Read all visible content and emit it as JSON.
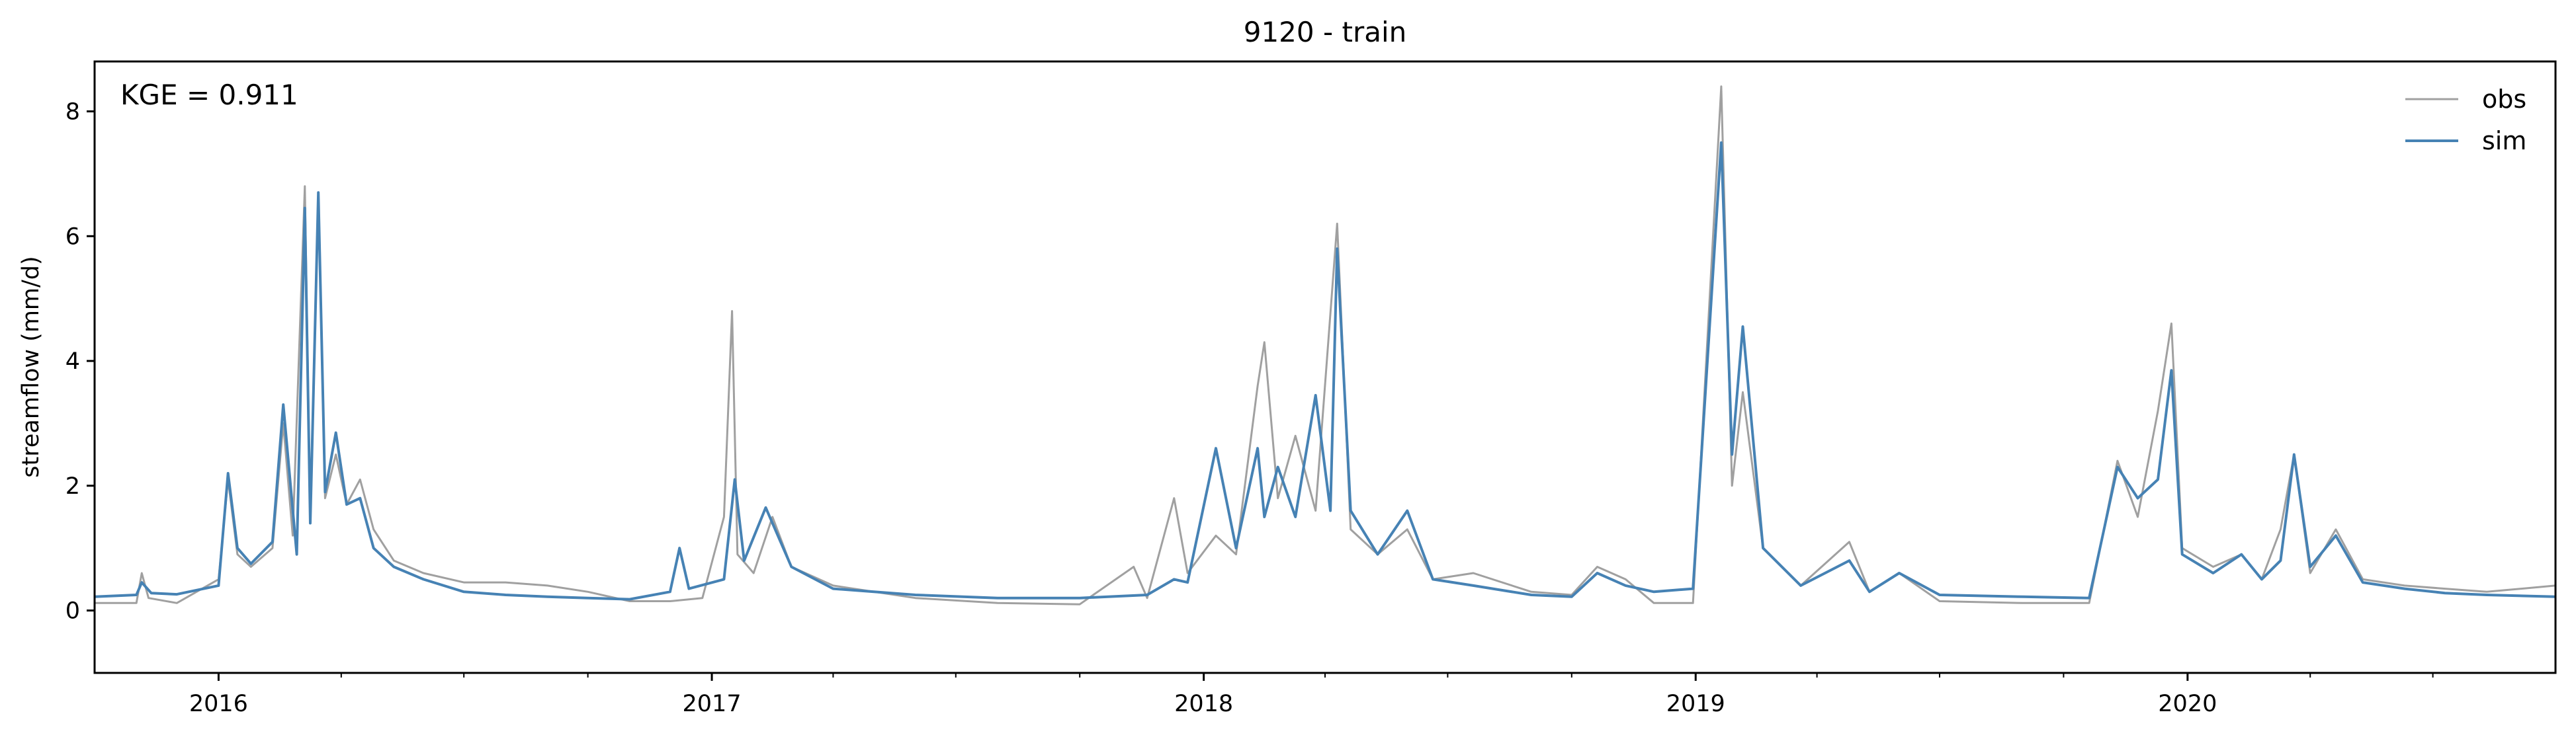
{
  "chart_data": {
    "type": "line",
    "title": "9120 - train",
    "xlabel": "",
    "ylabel": "streamflow (mm/d)",
    "annotation": "KGE = 0.911",
    "x_range": [
      "2015-10-01",
      "2020-09-30"
    ],
    "ylim": [
      -1.0,
      8.8
    ],
    "yticks": [
      0,
      2,
      4,
      6,
      8
    ],
    "xticks": [
      {
        "date": "2016-01-01",
        "label": "2016"
      },
      {
        "date": "2017-01-01",
        "label": "2017"
      },
      {
        "date": "2018-01-01",
        "label": "2018"
      },
      {
        "date": "2019-01-01",
        "label": "2019"
      },
      {
        "date": "2020-01-01",
        "label": "2020"
      }
    ],
    "minor_xticks": [
      "2016-04-01",
      "2016-07-01",
      "2016-10-01",
      "2017-04-01",
      "2017-07-01",
      "2017-10-01",
      "2018-04-01",
      "2018-07-01",
      "2018-10-01",
      "2019-04-01",
      "2019-07-01",
      "2019-10-01",
      "2020-04-01",
      "2020-07-01"
    ],
    "legend_position": "top-right",
    "grid": false,
    "series": [
      {
        "name": "obs",
        "color": "#a0a0a0",
        "points": [
          [
            "2015-10-01",
            0.12
          ],
          [
            "2015-11-01",
            0.12
          ],
          [
            "2015-11-05",
            0.6
          ],
          [
            "2015-11-10",
            0.2
          ],
          [
            "2015-12-01",
            0.12
          ],
          [
            "2016-01-01",
            0.5
          ],
          [
            "2016-01-08",
            2.1
          ],
          [
            "2016-01-15",
            0.9
          ],
          [
            "2016-01-25",
            0.7
          ],
          [
            "2016-02-10",
            1.0
          ],
          [
            "2016-02-18",
            3.0
          ],
          [
            "2016-02-25",
            1.2
          ],
          [
            "2016-03-05",
            6.8
          ],
          [
            "2016-03-09",
            1.5
          ],
          [
            "2016-03-15",
            6.7
          ],
          [
            "2016-03-20",
            1.8
          ],
          [
            "2016-03-28",
            2.5
          ],
          [
            "2016-04-05",
            1.7
          ],
          [
            "2016-04-15",
            2.1
          ],
          [
            "2016-04-25",
            1.3
          ],
          [
            "2016-05-10",
            0.8
          ],
          [
            "2016-06-01",
            0.6
          ],
          [
            "2016-07-01",
            0.45
          ],
          [
            "2016-08-01",
            0.45
          ],
          [
            "2016-09-01",
            0.4
          ],
          [
            "2016-10-01",
            0.3
          ],
          [
            "2016-11-01",
            0.15
          ],
          [
            "2016-12-01",
            0.15
          ],
          [
            "2016-12-25",
            0.2
          ],
          [
            "2017-01-10",
            1.5
          ],
          [
            "2017-01-16",
            4.8
          ],
          [
            "2017-01-20",
            0.9
          ],
          [
            "2017-02-01",
            0.6
          ],
          [
            "2017-02-15",
            1.5
          ],
          [
            "2017-03-01",
            0.7
          ],
          [
            "2017-04-01",
            0.4
          ],
          [
            "2017-06-01",
            0.2
          ],
          [
            "2017-08-01",
            0.12
          ],
          [
            "2017-10-01",
            0.1
          ],
          [
            "2017-11-10",
            0.7
          ],
          [
            "2017-11-20",
            0.2
          ],
          [
            "2017-12-10",
            1.8
          ],
          [
            "2017-12-20",
            0.6
          ],
          [
            "2018-01-10",
            1.2
          ],
          [
            "2018-01-25",
            0.9
          ],
          [
            "2018-02-10",
            3.6
          ],
          [
            "2018-02-15",
            4.3
          ],
          [
            "2018-02-25",
            1.8
          ],
          [
            "2018-03-10",
            2.8
          ],
          [
            "2018-03-25",
            1.6
          ],
          [
            "2018-04-10",
            6.2
          ],
          [
            "2018-04-20",
            1.3
          ],
          [
            "2018-05-10",
            0.9
          ],
          [
            "2018-06-01",
            1.3
          ],
          [
            "2018-06-20",
            0.5
          ],
          [
            "2018-07-20",
            0.6
          ],
          [
            "2018-09-01",
            0.3
          ],
          [
            "2018-10-01",
            0.25
          ],
          [
            "2018-10-20",
            0.7
          ],
          [
            "2018-11-10",
            0.5
          ],
          [
            "2018-12-01",
            0.12
          ],
          [
            "2018-12-30",
            0.12
          ],
          [
            "2019-01-20",
            8.4
          ],
          [
            "2019-01-28",
            2.0
          ],
          [
            "2019-02-05",
            3.5
          ],
          [
            "2019-02-20",
            1.0
          ],
          [
            "2019-03-20",
            0.4
          ],
          [
            "2019-04-25",
            1.1
          ],
          [
            "2019-05-10",
            0.3
          ],
          [
            "2019-06-01",
            0.6
          ],
          [
            "2019-07-01",
            0.15
          ],
          [
            "2019-09-01",
            0.12
          ],
          [
            "2019-10-20",
            0.12
          ],
          [
            "2019-11-10",
            2.4
          ],
          [
            "2019-11-25",
            1.5
          ],
          [
            "2019-12-10",
            3.2
          ],
          [
            "2019-12-20",
            4.6
          ],
          [
            "2019-12-28",
            1.0
          ],
          [
            "2020-01-20",
            0.7
          ],
          [
            "2020-02-10",
            0.9
          ],
          [
            "2020-02-25",
            0.5
          ],
          [
            "2020-03-10",
            1.3
          ],
          [
            "2020-03-20",
            2.5
          ],
          [
            "2020-04-01",
            0.6
          ],
          [
            "2020-04-20",
            1.3
          ],
          [
            "2020-05-10",
            0.5
          ],
          [
            "2020-06-10",
            0.4
          ],
          [
            "2020-07-10",
            0.35
          ],
          [
            "2020-08-10",
            0.3
          ],
          [
            "2020-09-30",
            0.4
          ]
        ]
      },
      {
        "name": "sim",
        "color": "#4682b4",
        "points": [
          [
            "2015-10-01",
            0.22
          ],
          [
            "2015-11-01",
            0.25
          ],
          [
            "2015-11-05",
            0.45
          ],
          [
            "2015-11-12",
            0.28
          ],
          [
            "2015-12-01",
            0.26
          ],
          [
            "2016-01-01",
            0.4
          ],
          [
            "2016-01-08",
            2.2
          ],
          [
            "2016-01-15",
            1.0
          ],
          [
            "2016-01-25",
            0.75
          ],
          [
            "2016-02-10",
            1.1
          ],
          [
            "2016-02-18",
            3.3
          ],
          [
            "2016-02-28",
            0.9
          ],
          [
            "2016-03-05",
            6.45
          ],
          [
            "2016-03-09",
            1.4
          ],
          [
            "2016-03-15",
            6.7
          ],
          [
            "2016-03-20",
            1.9
          ],
          [
            "2016-03-28",
            2.85
          ],
          [
            "2016-04-05",
            1.7
          ],
          [
            "2016-04-15",
            1.8
          ],
          [
            "2016-04-25",
            1.0
          ],
          [
            "2016-05-10",
            0.7
          ],
          [
            "2016-06-01",
            0.5
          ],
          [
            "2016-07-01",
            0.3
          ],
          [
            "2016-08-01",
            0.25
          ],
          [
            "2016-09-01",
            0.22
          ],
          [
            "2016-10-01",
            0.2
          ],
          [
            "2016-11-01",
            0.18
          ],
          [
            "2016-12-01",
            0.3
          ],
          [
            "2016-12-08",
            1.0
          ],
          [
            "2016-12-15",
            0.35
          ],
          [
            "2017-01-10",
            0.5
          ],
          [
            "2017-01-18",
            2.1
          ],
          [
            "2017-01-25",
            0.8
          ],
          [
            "2017-02-10",
            1.65
          ],
          [
            "2017-03-01",
            0.7
          ],
          [
            "2017-04-01",
            0.35
          ],
          [
            "2017-06-01",
            0.25
          ],
          [
            "2017-08-01",
            0.2
          ],
          [
            "2017-10-01",
            0.2
          ],
          [
            "2017-11-20",
            0.25
          ],
          [
            "2017-12-10",
            0.5
          ],
          [
            "2017-12-20",
            0.45
          ],
          [
            "2018-01-10",
            2.6
          ],
          [
            "2018-01-25",
            1.0
          ],
          [
            "2018-02-10",
            2.6
          ],
          [
            "2018-02-15",
            1.5
          ],
          [
            "2018-02-25",
            2.3
          ],
          [
            "2018-03-10",
            1.5
          ],
          [
            "2018-03-25",
            3.45
          ],
          [
            "2018-04-05",
            1.6
          ],
          [
            "2018-04-10",
            5.8
          ],
          [
            "2018-04-20",
            1.6
          ],
          [
            "2018-05-10",
            0.9
          ],
          [
            "2018-06-01",
            1.6
          ],
          [
            "2018-06-20",
            0.5
          ],
          [
            "2018-07-20",
            0.4
          ],
          [
            "2018-09-01",
            0.25
          ],
          [
            "2018-10-01",
            0.22
          ],
          [
            "2018-10-20",
            0.6
          ],
          [
            "2018-11-10",
            0.4
          ],
          [
            "2018-12-01",
            0.3
          ],
          [
            "2018-12-30",
            0.35
          ],
          [
            "2019-01-20",
            7.5
          ],
          [
            "2019-01-28",
            2.5
          ],
          [
            "2019-02-05",
            4.55
          ],
          [
            "2019-02-20",
            1.0
          ],
          [
            "2019-03-20",
            0.4
          ],
          [
            "2019-04-25",
            0.8
          ],
          [
            "2019-05-10",
            0.3
          ],
          [
            "2019-06-01",
            0.6
          ],
          [
            "2019-07-01",
            0.25
          ],
          [
            "2019-09-01",
            0.22
          ],
          [
            "2019-10-20",
            0.2
          ],
          [
            "2019-11-10",
            2.3
          ],
          [
            "2019-11-25",
            1.8
          ],
          [
            "2019-12-10",
            2.1
          ],
          [
            "2019-12-20",
            3.85
          ],
          [
            "2019-12-28",
            0.9
          ],
          [
            "2020-01-20",
            0.6
          ],
          [
            "2020-02-10",
            0.9
          ],
          [
            "2020-02-25",
            0.5
          ],
          [
            "2020-03-10",
            0.8
          ],
          [
            "2020-03-20",
            2.5
          ],
          [
            "2020-04-01",
            0.7
          ],
          [
            "2020-04-20",
            1.2
          ],
          [
            "2020-05-10",
            0.45
          ],
          [
            "2020-06-10",
            0.35
          ],
          [
            "2020-07-10",
            0.28
          ],
          [
            "2020-08-10",
            0.25
          ],
          [
            "2020-09-30",
            0.22
          ]
        ]
      }
    ]
  }
}
